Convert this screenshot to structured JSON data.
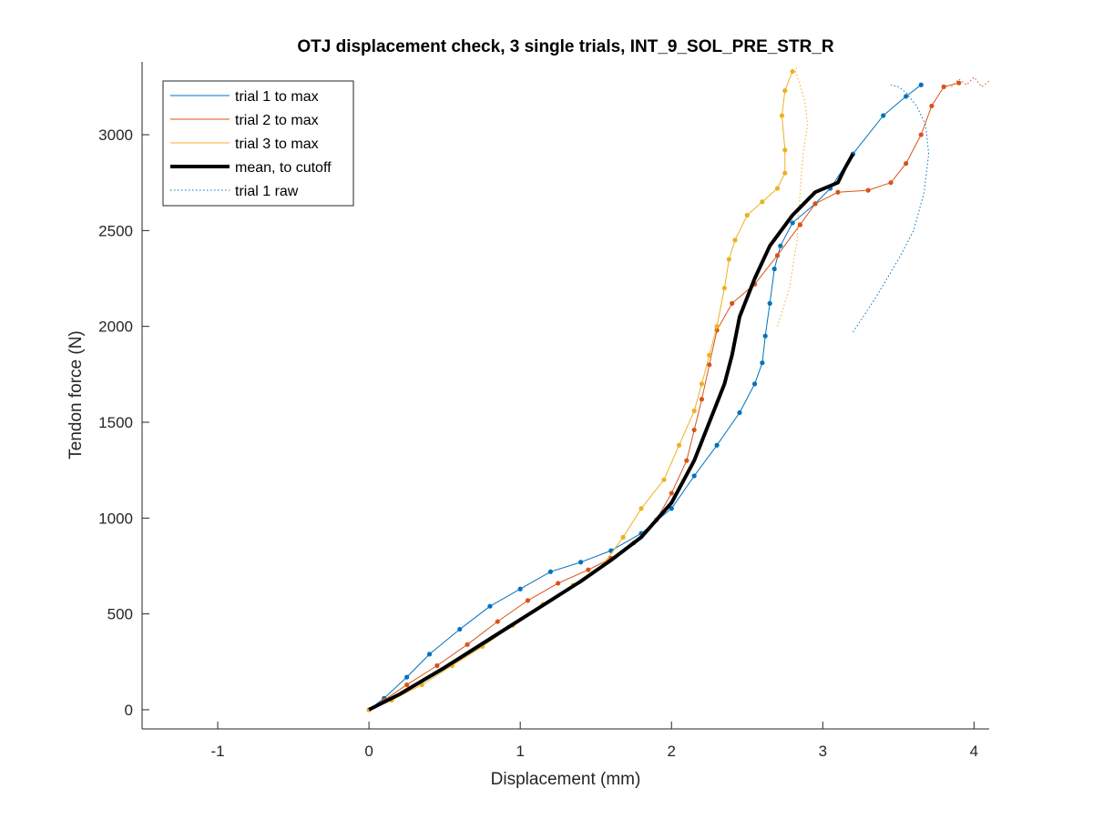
{
  "chart_data": {
    "type": "line",
    "title": "OTJ displacement check, 3 single trials, INT_9_SOL_PRE_STR_R",
    "xlabel": "Displacement (mm)",
    "ylabel": "Tendon force (N)",
    "xlim": [
      -1.5,
      4.1
    ],
    "ylim": [
      -100,
      3380
    ],
    "xticks": [
      -1,
      0,
      1,
      2,
      3,
      4
    ],
    "yticks": [
      0,
      500,
      1000,
      1500,
      2000,
      2500,
      3000
    ],
    "grid": false,
    "legend_placement": "top-left",
    "series": [
      {
        "name": "trial 1 to max",
        "color": "#0072BD",
        "style": "solid-markers",
        "x": [
          0.0,
          0.1,
          0.25,
          0.4,
          0.6,
          0.8,
          1.0,
          1.2,
          1.4,
          1.6,
          1.8,
          2.0,
          2.15,
          2.3,
          2.45,
          2.55,
          2.6,
          2.62,
          2.65,
          2.68,
          2.72,
          2.8,
          2.95,
          3.05,
          3.2,
          3.4,
          3.55,
          3.65
        ],
        "y": [
          0,
          60,
          170,
          290,
          420,
          540,
          630,
          720,
          770,
          830,
          920,
          1050,
          1220,
          1380,
          1550,
          1700,
          1810,
          1950,
          2120,
          2300,
          2420,
          2540,
          2640,
          2720,
          2900,
          3100,
          3200,
          3260
        ]
      },
      {
        "name": "trial 2 to max",
        "color": "#D95319",
        "style": "solid-markers",
        "x": [
          0.0,
          0.1,
          0.25,
          0.45,
          0.65,
          0.85,
          1.05,
          1.25,
          1.45,
          1.6,
          1.75,
          1.9,
          2.0,
          2.1,
          2.15,
          2.2,
          2.25,
          2.3,
          2.4,
          2.55,
          2.7,
          2.85,
          2.95,
          3.1,
          3.3,
          3.45,
          3.55,
          3.65,
          3.72,
          3.8,
          3.9
        ],
        "y": [
          0,
          50,
          130,
          230,
          340,
          460,
          570,
          660,
          730,
          790,
          870,
          990,
          1130,
          1300,
          1460,
          1620,
          1800,
          1980,
          2120,
          2220,
          2370,
          2530,
          2640,
          2700,
          2710,
          2750,
          2850,
          3000,
          3150,
          3250,
          3270
        ]
      },
      {
        "name": "trial 3 to max",
        "color": "#EDB120",
        "style": "solid-markers",
        "x": [
          0.0,
          0.15,
          0.35,
          0.55,
          0.75,
          0.95,
          1.15,
          1.35,
          1.55,
          1.68,
          1.8,
          1.95,
          2.05,
          2.15,
          2.2,
          2.25,
          2.3,
          2.35,
          2.38,
          2.42,
          2.5,
          2.6,
          2.7,
          2.75,
          2.75,
          2.73,
          2.75,
          2.8
        ],
        "y": [
          0,
          50,
          130,
          230,
          330,
          440,
          550,
          650,
          760,
          900,
          1050,
          1200,
          1380,
          1560,
          1700,
          1850,
          2000,
          2200,
          2350,
          2450,
          2580,
          2650,
          2720,
          2800,
          2920,
          3100,
          3230,
          3330
        ]
      },
      {
        "name": "mean, to cutoff",
        "color": "#000000",
        "style": "thick",
        "x": [
          0.0,
          0.2,
          0.5,
          0.8,
          1.1,
          1.4,
          1.6,
          1.8,
          2.0,
          2.15,
          2.25,
          2.35,
          2.4,
          2.45,
          2.55,
          2.65,
          2.8,
          2.95,
          3.1,
          3.15,
          3.2
        ],
        "y": [
          0,
          80,
          220,
          370,
          520,
          670,
          780,
          900,
          1080,
          1300,
          1500,
          1700,
          1850,
          2050,
          2250,
          2420,
          2580,
          2700,
          2750,
          2830,
          2900
        ]
      },
      {
        "name": "trial 1 raw",
        "color": "#0072BD",
        "style": "dotted",
        "x": [
          3.2,
          3.35,
          3.5,
          3.6,
          3.67,
          3.7,
          3.68,
          3.62,
          3.55,
          3.5,
          3.45
        ],
        "y": [
          1970,
          2150,
          2350,
          2500,
          2700,
          2900,
          3050,
          3150,
          3220,
          3250,
          3260
        ]
      },
      {
        "name": "",
        "color": "#EDB120",
        "style": "dotted",
        "x": [
          2.7,
          2.78,
          2.83,
          2.85,
          2.87,
          2.9,
          2.88,
          2.85,
          2.82,
          2.83
        ],
        "y": [
          2000,
          2200,
          2450,
          2700,
          2900,
          3050,
          3180,
          3260,
          3330,
          3360
        ]
      },
      {
        "name": "",
        "color": "#D95319",
        "style": "dotted",
        "x": [
          3.85,
          3.9,
          3.95,
          4.0,
          4.05,
          4.1
        ],
        "y": [
          3250,
          3290,
          3260,
          3300,
          3250,
          3280
        ]
      }
    ]
  }
}
